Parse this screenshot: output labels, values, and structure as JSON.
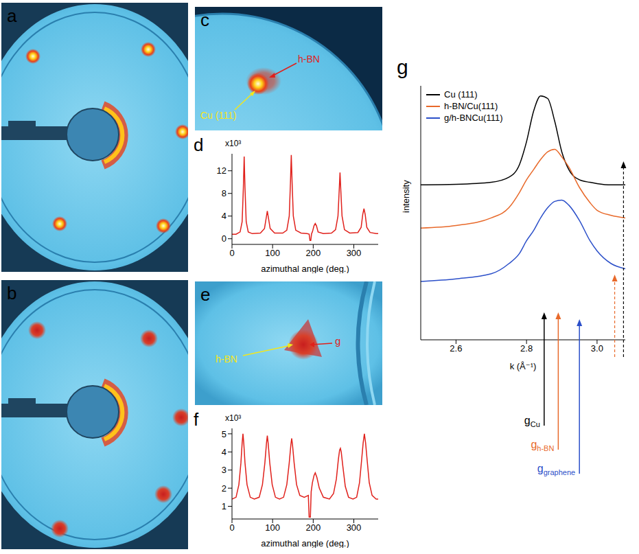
{
  "panels": [
    {
      "letter": "a",
      "type": "image"
    },
    {
      "letter": "b",
      "type": "image"
    },
    {
      "letter": "c",
      "type": "image",
      "labels": [
        {
          "text": "Cu (111)",
          "color": "#f4e61a"
        },
        {
          "text": "h-BN",
          "color": "#e0201b"
        }
      ]
    },
    {
      "letter": "e",
      "type": "image",
      "labels": [
        {
          "text": "h-BN",
          "color": "#f4e61a"
        },
        {
          "text": "g",
          "color": "#e0201b"
        }
      ]
    }
  ],
  "chart_data": [
    {
      "letter": "d",
      "type": "line",
      "xlabel": "azimuthal angle (deg.)",
      "ylabel": "x10³",
      "color": "#e0201b",
      "x": [
        0,
        10,
        20,
        25,
        28,
        30,
        32,
        35,
        40,
        50,
        70,
        80,
        85,
        87,
        89,
        94,
        105,
        125,
        135,
        141,
        144,
        146,
        148,
        151,
        157,
        170,
        185,
        190,
        192,
        194,
        196,
        198,
        202,
        205,
        208,
        212,
        225,
        245,
        255,
        261,
        264,
        266,
        268,
        271,
        277,
        290,
        310,
        318,
        322,
        325,
        328,
        332,
        340,
        355,
        360
      ],
      "values": [
        0.8,
        0.8,
        1.2,
        3,
        9,
        14.5,
        9,
        3,
        1.2,
        0.9,
        1.0,
        1.8,
        4,
        4.9,
        4,
        1.8,
        1.0,
        1.0,
        1.5,
        4,
        10,
        14.8,
        10,
        4,
        1.5,
        1.0,
        0.9,
        0.8,
        -0.3,
        -0.3,
        0.9,
        1.2,
        2.3,
        2.7,
        2.3,
        1.2,
        0.9,
        1.0,
        1.6,
        4,
        8.5,
        11.7,
        8.5,
        4,
        1.6,
        1.0,
        1.1,
        2,
        4.3,
        5.3,
        4.3,
        2,
        1.1,
        0.9,
        0.9
      ],
      "xlim": [
        0,
        360
      ],
      "ylim": [
        -1,
        15
      ],
      "xticks": [
        0,
        100,
        200,
        300
      ],
      "yticks": [
        0,
        4,
        8,
        12
      ]
    },
    {
      "letter": "f",
      "type": "line",
      "xlabel": "azimuthal angle (deg.)",
      "ylabel": "x10³",
      "color": "#e0201b",
      "x": [
        0,
        10,
        17,
        22,
        25,
        27,
        29,
        32,
        37,
        45,
        55,
        67,
        75,
        81,
        85,
        87,
        89,
        93,
        99,
        107,
        117,
        127,
        135,
        141,
        145,
        147,
        149,
        153,
        159,
        167,
        178,
        188,
        190,
        193,
        195,
        198,
        202,
        205,
        209,
        215,
        225,
        240,
        250,
        257,
        262,
        265,
        267,
        269,
        273,
        279,
        287,
        298,
        307,
        314,
        319,
        323,
        326,
        329,
        333,
        338,
        345,
        355,
        360
      ],
      "values": [
        1.4,
        1.5,
        2.2,
        3.4,
        4.5,
        5.0,
        4.5,
        3.4,
        2.2,
        1.5,
        1.4,
        1.5,
        2.2,
        3.4,
        4.5,
        4.9,
        4.5,
        3.4,
        2.2,
        1.5,
        1.4,
        1.5,
        2.2,
        3.4,
        4.4,
        4.75,
        4.4,
        3.4,
        2.2,
        1.6,
        1.5,
        1.6,
        0.4,
        0.4,
        1.8,
        2.3,
        2.7,
        2.85,
        2.6,
        2.0,
        1.5,
        1.4,
        1.7,
        2.5,
        3.6,
        4.1,
        4.2,
        4.0,
        3.2,
        2.1,
        1.5,
        1.4,
        1.5,
        2.3,
        3.5,
        4.5,
        5.0,
        4.5,
        3.5,
        2.3,
        1.6,
        1.4,
        1.4
      ],
      "xlim": [
        0,
        360
      ],
      "ylim": [
        0.3,
        5.3
      ],
      "xticks": [
        0,
        100,
        200,
        300
      ],
      "yticks": [
        1,
        2,
        3,
        4,
        5
      ]
    },
    {
      "letter": "g",
      "type": "line",
      "xlabel": "k (Å⁻¹)",
      "ylabel": "intensity",
      "x": [
        2.5,
        2.6,
        2.7,
        2.75,
        2.78,
        2.8,
        2.82,
        2.84,
        2.86,
        2.88,
        2.9,
        2.92,
        2.95,
        2.98,
        3.0,
        3.04,
        3.08
      ],
      "series": [
        {
          "name": "Cu (111)",
          "color": "#000000",
          "values": [
            6.1,
            6.12,
            6.2,
            6.4,
            6.9,
            7.8,
            9.0,
            9.6,
            9.5,
            8.6,
            7.4,
            6.7,
            6.3,
            6.2,
            6.15,
            6.1,
            6.1
          ]
        },
        {
          "name": "h-BN/Cu(111)",
          "color": "#e8692a",
          "values": [
            4.4,
            4.5,
            4.8,
            5.2,
            5.8,
            6.3,
            6.7,
            7.1,
            7.4,
            7.5,
            7.2,
            6.8,
            6.0,
            5.4,
            5.1,
            4.9,
            4.8
          ]
        },
        {
          "name": "g/h-BNCu(111)",
          "color": "#2b4fc9",
          "values": [
            2.3,
            2.4,
            2.6,
            3.0,
            3.4,
            3.9,
            4.3,
            4.8,
            5.2,
            5.45,
            5.5,
            5.3,
            4.7,
            3.9,
            3.5,
            3.0,
            2.8
          ]
        }
      ],
      "xlim": [
        2.5,
        3.08
      ],
      "ylim": [
        0,
        10
      ],
      "xticks": [
        2.6,
        2.8,
        {
          "value": 3,
          "label": "3.0"
        }
      ],
      "tick_labels": "x",
      "legend": "top-left",
      "annotations": [
        {
          "text": "g",
          "subscript": "Cu",
          "x": 2.85,
          "color": "#000000"
        },
        {
          "text": "g",
          "subscript": "h-BN",
          "x": 2.89,
          "color": "#e8692a"
        },
        {
          "text": "g",
          "subscript": "graphene",
          "x": 2.95,
          "color": "#2b4fc9"
        },
        {
          "x": 3.05,
          "color": "#e8692a",
          "line_style": "dashed"
        },
        {
          "x": 3.075,
          "color": "#000000",
          "line_style": "dashed"
        }
      ]
    }
  ]
}
